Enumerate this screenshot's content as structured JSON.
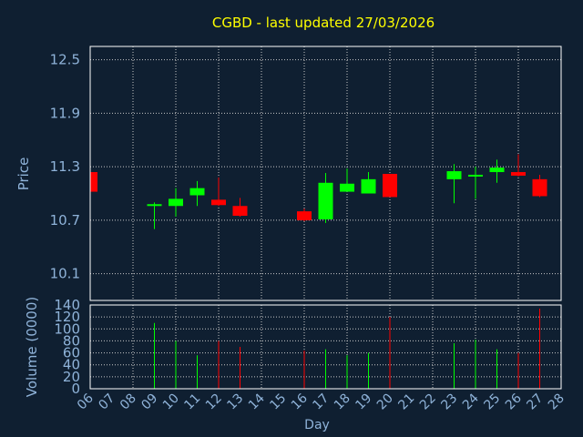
{
  "chart_data": [
    {
      "type": "candlestick",
      "title": "CGBD - last updated 27/03/2026",
      "ylabel": "Price",
      "ylim": [
        9.8,
        12.65
      ],
      "yticks": [
        "12.5",
        "11.9",
        "11.3",
        "10.7",
        "10.1"
      ],
      "ytick_values": [
        12.5,
        11.9,
        11.3,
        10.7,
        10.1
      ],
      "grid": true,
      "candles": [
        {
          "day": "06",
          "open": 11.24,
          "high": 11.26,
          "low": 11.02,
          "close": 11.02
        },
        {
          "day": "09",
          "open": 10.86,
          "high": 10.9,
          "low": 10.6,
          "close": 10.88
        },
        {
          "day": "10",
          "open": 10.86,
          "high": 11.06,
          "low": 10.74,
          "close": 10.94
        },
        {
          "day": "11",
          "open": 10.98,
          "high": 11.14,
          "low": 10.86,
          "close": 11.06
        },
        {
          "day": "12",
          "open": 10.93,
          "high": 11.18,
          "low": 10.86,
          "close": 10.87
        },
        {
          "day": "13",
          "open": 10.86,
          "high": 10.95,
          "low": 10.74,
          "close": 10.75
        },
        {
          "day": "16",
          "open": 10.8,
          "high": 10.83,
          "low": 10.69,
          "close": 10.7
        },
        {
          "day": "17",
          "open": 10.71,
          "high": 11.23,
          "low": 10.67,
          "close": 11.12
        },
        {
          "day": "18",
          "open": 11.02,
          "high": 11.28,
          "low": 11.02,
          "close": 11.11
        },
        {
          "day": "19",
          "open": 11.0,
          "high": 11.24,
          "low": 11.0,
          "close": 11.16
        },
        {
          "day": "20",
          "open": 11.22,
          "high": 11.22,
          "low": 10.96,
          "close": 10.96
        },
        {
          "day": "23",
          "open": 11.16,
          "high": 11.33,
          "low": 10.89,
          "close": 11.25
        },
        {
          "day": "24",
          "open": 11.19,
          "high": 11.3,
          "low": 10.94,
          "close": 11.21
        },
        {
          "day": "25",
          "open": 11.24,
          "high": 11.38,
          "low": 11.12,
          "close": 11.29
        },
        {
          "day": "26",
          "open": 11.24,
          "high": 11.44,
          "low": 11.19,
          "close": 11.2
        },
        {
          "day": "27",
          "open": 11.16,
          "high": 11.21,
          "low": 10.96,
          "close": 10.97
        }
      ]
    },
    {
      "type": "bar",
      "ylabel": "Volume (0000)",
      "xlabel": "Day",
      "ylim": [
        0,
        140
      ],
      "yticks": [
        "140",
        "120",
        "100",
        "80",
        "60",
        "40",
        "20",
        "0"
      ],
      "ytick_values": [
        140,
        120,
        100,
        80,
        60,
        40,
        20,
        0
      ],
      "categories": [
        "06",
        "07",
        "08",
        "09",
        "10",
        "11",
        "12",
        "13",
        "14",
        "15",
        "16",
        "17",
        "18",
        "19",
        "20",
        "21",
        "22",
        "23",
        "24",
        "25",
        "26",
        "27",
        "28"
      ],
      "bars": [
        {
          "day": "09",
          "value": 110,
          "direction": "up"
        },
        {
          "day": "10",
          "value": 80,
          "direction": "up"
        },
        {
          "day": "11",
          "value": 56,
          "direction": "up"
        },
        {
          "day": "12",
          "value": 80,
          "direction": "down"
        },
        {
          "day": "13",
          "value": 70,
          "direction": "down"
        },
        {
          "day": "16",
          "value": 64,
          "direction": "down"
        },
        {
          "day": "17",
          "value": 66,
          "direction": "up"
        },
        {
          "day": "18",
          "value": 56,
          "direction": "up"
        },
        {
          "day": "19",
          "value": 60,
          "direction": "up"
        },
        {
          "day": "20",
          "value": 120,
          "direction": "down"
        },
        {
          "day": "23",
          "value": 76,
          "direction": "up"
        },
        {
          "day": "24",
          "value": 82,
          "direction": "up"
        },
        {
          "day": "25",
          "value": 66,
          "direction": "up"
        },
        {
          "day": "26",
          "value": 60,
          "direction": "down"
        },
        {
          "day": "27",
          "value": 134,
          "direction": "down"
        }
      ]
    }
  ],
  "colors": {
    "background": "#0f1f31",
    "title": "#ffff00",
    "axis_text": "#8fb3d9",
    "grid": "#c8c8c8",
    "frame": "#ffffff",
    "up": "#00ff00",
    "down": "#ff0000"
  }
}
